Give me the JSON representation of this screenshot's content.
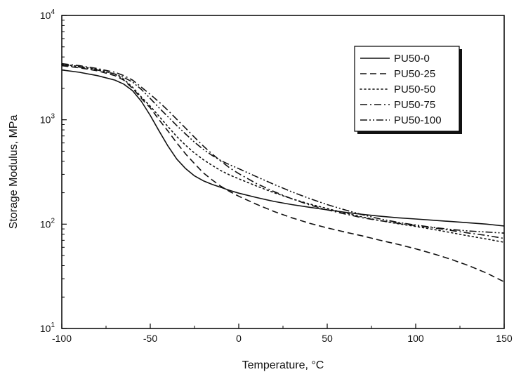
{
  "chart_data": {
    "type": "line",
    "xlabel": "Temperature, °C",
    "ylabel": "Storage Modulus, MPa",
    "xlim": [
      -100,
      150
    ],
    "ylim": [
      10,
      10000
    ],
    "yscale": "log",
    "x_ticks": [
      -100,
      -50,
      0,
      50,
      100,
      150
    ],
    "y_ticks": [
      {
        "value": 10,
        "base": "10",
        "exp": "1"
      },
      {
        "value": 100,
        "base": "10",
        "exp": "2"
      },
      {
        "value": 1000,
        "base": "10",
        "exp": "3"
      },
      {
        "value": 10000,
        "base": "10",
        "exp": "4"
      }
    ],
    "grid": false,
    "legend_position": "top-right",
    "series": [
      {
        "name": "PU50-0",
        "style": "solid",
        "x": [
          -100,
          -90,
          -80,
          -70,
          -65,
          -60,
          -55,
          -50,
          -45,
          -40,
          -35,
          -30,
          -25,
          -20,
          -15,
          -10,
          -5,
          0,
          10,
          20,
          30,
          40,
          50,
          60,
          70,
          80,
          90,
          100,
          110,
          120,
          130,
          140,
          150
        ],
        "y": [
          3000,
          2850,
          2650,
          2400,
          2200,
          1900,
          1500,
          1100,
          780,
          560,
          420,
          340,
          290,
          260,
          240,
          225,
          210,
          198,
          180,
          165,
          154,
          145,
          137,
          130,
          124,
          119,
          115,
          112,
          109,
          106,
          103,
          100,
          96
        ]
      },
      {
        "name": "PU50-25",
        "style": "dashed",
        "x": [
          -100,
          -90,
          -80,
          -70,
          -65,
          -60,
          -55,
          -50,
          -45,
          -40,
          -35,
          -30,
          -25,
          -20,
          -15,
          -10,
          -5,
          0,
          10,
          20,
          30,
          40,
          50,
          60,
          70,
          80,
          90,
          100,
          110,
          120,
          130,
          140,
          150
        ],
        "y": [
          3300,
          3150,
          2950,
          2650,
          2400,
          2000,
          1600,
          1300,
          1000,
          780,
          600,
          470,
          380,
          310,
          265,
          230,
          205,
          185,
          155,
          132,
          115,
          102,
          92,
          84,
          77,
          70,
          64,
          58,
          52,
          46,
          40,
          34,
          28
        ]
      },
      {
        "name": "PU50-50",
        "style": "dotted",
        "x": [
          -100,
          -90,
          -80,
          -70,
          -65,
          -60,
          -55,
          -50,
          -45,
          -40,
          -35,
          -30,
          -25,
          -20,
          -15,
          -10,
          -5,
          0,
          10,
          20,
          30,
          40,
          50,
          60,
          70,
          80,
          90,
          100,
          110,
          120,
          130,
          140,
          150
        ],
        "y": [
          3400,
          3250,
          3050,
          2750,
          2450,
          2050,
          1650,
          1350,
          1080,
          860,
          690,
          570,
          480,
          415,
          365,
          325,
          295,
          272,
          232,
          200,
          175,
          156,
          141,
          128,
          117,
          108,
          101,
          95,
          89,
          83,
          77,
          72,
          67
        ]
      },
      {
        "name": "PU50-75",
        "style": "dashdot",
        "x": [
          -100,
          -90,
          -80,
          -70,
          -65,
          -60,
          -55,
          -50,
          -45,
          -40,
          -35,
          -30,
          -25,
          -20,
          -15,
          -10,
          -5,
          0,
          10,
          20,
          30,
          40,
          50,
          60,
          70,
          80,
          90,
          100,
          110,
          120,
          130,
          140,
          150
        ],
        "y": [
          3450,
          3300,
          3100,
          2850,
          2650,
          2400,
          2050,
          1750,
          1480,
          1230,
          1010,
          830,
          680,
          560,
          470,
          400,
          345,
          305,
          245,
          205,
          175,
          153,
          137,
          125,
          115,
          108,
          102,
          97,
          92,
          87,
          82,
          78,
          73
        ]
      },
      {
        "name": "PU50-100",
        "style": "dashdotdot",
        "x": [
          -100,
          -90,
          -80,
          -70,
          -65,
          -60,
          -55,
          -50,
          -45,
          -40,
          -35,
          -30,
          -25,
          -20,
          -15,
          -10,
          -5,
          0,
          10,
          20,
          30,
          40,
          50,
          60,
          70,
          80,
          90,
          100,
          110,
          120,
          130,
          140,
          150
        ],
        "y": [
          3350,
          3200,
          3000,
          2750,
          2550,
          2300,
          1950,
          1600,
          1300,
          1070,
          880,
          730,
          610,
          520,
          455,
          405,
          370,
          340,
          285,
          240,
          204,
          176,
          154,
          137,
          123,
          112,
          104,
          98,
          93,
          89,
          86,
          84,
          82
        ]
      }
    ]
  }
}
